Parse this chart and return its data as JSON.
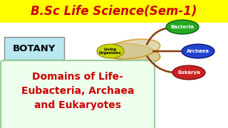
{
  "title": "B.Sc Life Science(Sem-1)",
  "title_color": "#cc0000",
  "title_bg": "#ffff00",
  "botany_label": "BOTANY",
  "botany_bg": "#b8e8f0",
  "living_label": "Living\nOrganisms",
  "living_color": "#c8d400",
  "bacteria_label": "Bacteria",
  "bacteria_color": "#22aa22",
  "archaea_label": "Archaea",
  "archaea_color": "#2244cc",
  "eukarya_label": "Eukarya",
  "eukarya_color": "#cc2222",
  "main_text_line1": "Domains of Life-",
  "main_text_line2": "Eubacteria, Archaea",
  "main_text_line3": "and Eukaryotes",
  "main_text_color": "#cc0000",
  "main_box_bg": "#eeffee",
  "main_box_border": "#99cc99",
  "helix_color": "#d4c890",
  "helix_edge": "#cc8800",
  "stem_color": "#8B3A0A",
  "bg_color": "#ffffff"
}
